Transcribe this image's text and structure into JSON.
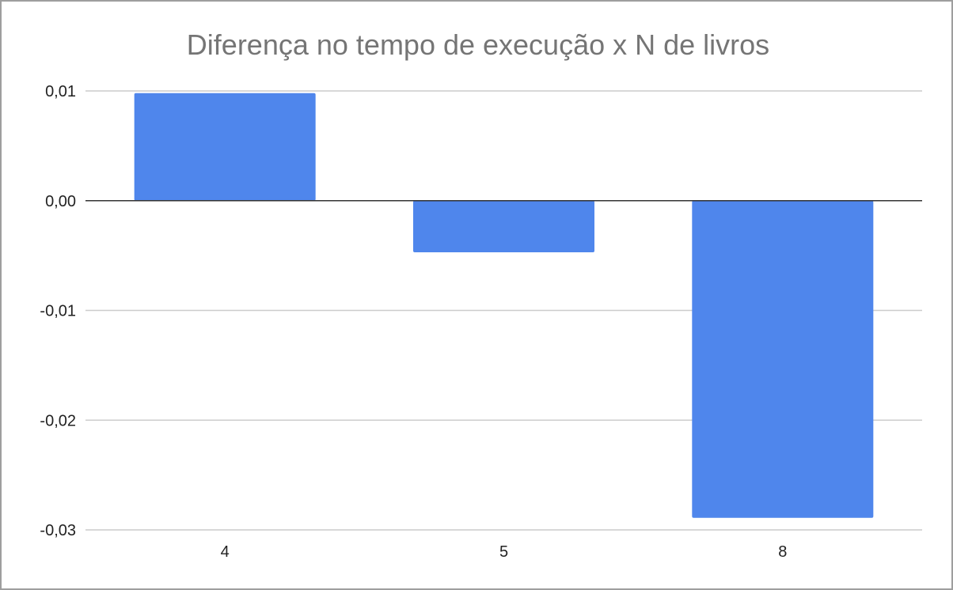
{
  "chart_data": {
    "type": "bar",
    "title": "Diferença no tempo de execução x N de livros",
    "xlabel": "",
    "ylabel": "",
    "categories": [
      "4",
      "5",
      "8"
    ],
    "values": [
      0.0098,
      -0.0047,
      -0.0289
    ],
    "ylim": [
      -0.03,
      0.01
    ],
    "yticks": [
      0.01,
      0.0,
      -0.01,
      -0.02,
      -0.03
    ],
    "ytick_labels": [
      "0,01",
      "0,00",
      "-0,01",
      "-0,02",
      "-0,03"
    ],
    "grid": true,
    "legend": "none",
    "bar_color": "#4f86ec",
    "gridline_color": "#cccccc",
    "zero_line_color": "#333333",
    "title_color": "#757575"
  }
}
